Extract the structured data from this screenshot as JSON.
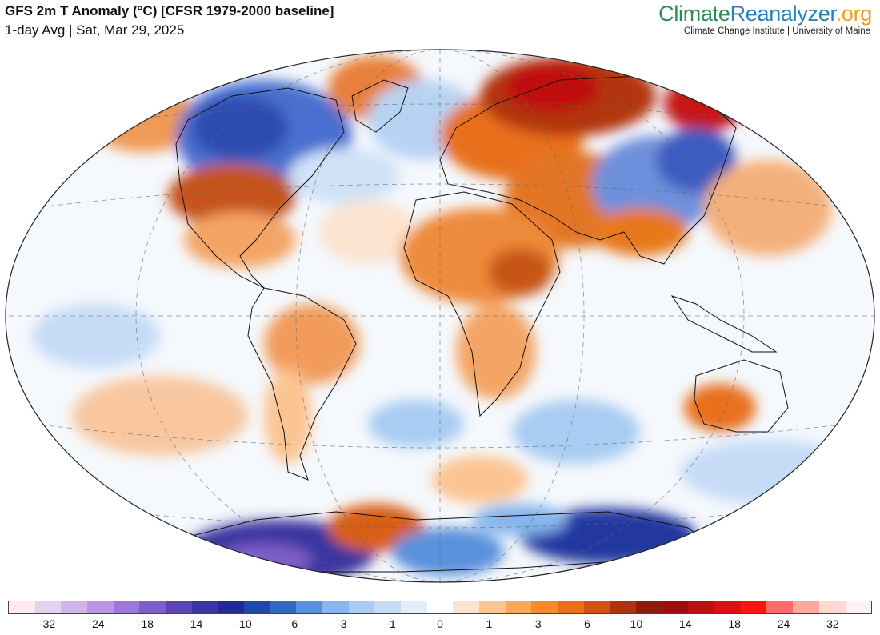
{
  "header": {
    "title": "GFS 2m T Anomaly (°C) [CFSR 1979-2000 baseline]",
    "subtitle": "1-day Avg | Sat, Mar 29, 2025"
  },
  "brand": {
    "part1": "Climate",
    "part2": "Reanalyzer",
    "part3": ".org",
    "tagline": "Climate Change Institute | University of Maine"
  },
  "legend": {
    "colors": [
      "#fde9ee",
      "#e6d0ee",
      "#d1b5ea",
      "#b997e2",
      "#9e78d6",
      "#7f5ec7",
      "#5a47b4",
      "#3b35a0",
      "#1f2a96",
      "#2048a8",
      "#3468c0",
      "#5a91dc",
      "#86b6ec",
      "#a9ccf2",
      "#c6dcf6",
      "#e2eefb",
      "#ffffff",
      "#fde4cf",
      "#fbc591",
      "#f9a75b",
      "#f58a2e",
      "#e8701c",
      "#cf5212",
      "#ac3410",
      "#8c1a0d",
      "#9c0f10",
      "#c00b0f",
      "#dd0e14",
      "#ff1313",
      "#ff6a6a",
      "#ffa8a0",
      "#ffd8d0",
      "#fff2f0"
    ],
    "labels": [
      "-32",
      "-24",
      "-18",
      "-14",
      "-10",
      "-6",
      "-3",
      "-1",
      "0",
      "1",
      "3",
      "6",
      "10",
      "14",
      "18",
      "24",
      "32"
    ]
  }
}
